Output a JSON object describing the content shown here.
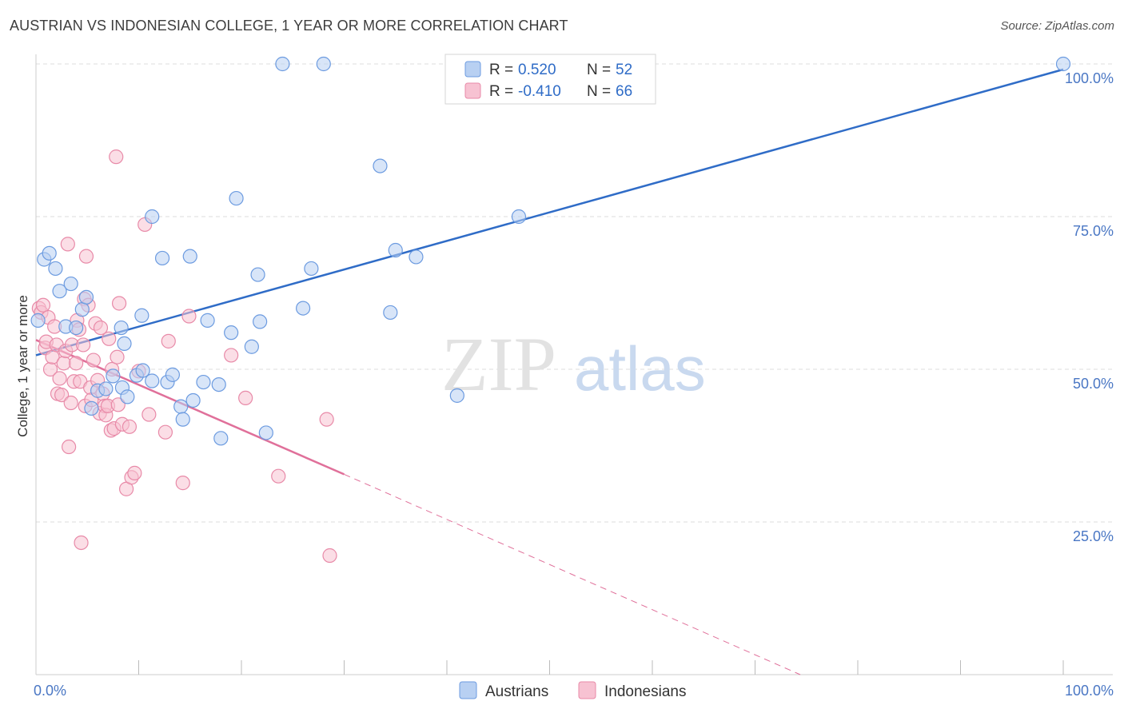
{
  "title": "AUSTRIAN VS INDONESIAN COLLEGE, 1 YEAR OR MORE CORRELATION CHART",
  "source": "Source: ZipAtlas.com",
  "watermark": {
    "zip": "ZIP",
    "atlas": "atlas"
  },
  "colors": {
    "austrian_fill": "#b8d0f2",
    "austrian_stroke": "#6c9be0",
    "austrian_line": "#2f6cc7",
    "indonesian_fill": "#f7c2d2",
    "indonesian_stroke": "#e88aa8",
    "indonesian_line": "#e0709a",
    "grid": "#dddddd",
    "tick_label": "#4a77c4"
  },
  "legend": {
    "rows": [
      {
        "r_label": "R =",
        "r_value": " 0.520",
        "n_label": "N =",
        "n_value": "52"
      },
      {
        "r_label": "R =",
        "r_value": "-0.410",
        "n_label": "N =",
        "n_value": "66"
      }
    ],
    "bottom": [
      "Austrians",
      "Indonesians"
    ]
  },
  "chart_data": {
    "type": "scatter",
    "title": "AUSTRIAN VS INDONESIAN COLLEGE, 1 YEAR OR MORE CORRELATION CHART",
    "xlabel": "",
    "ylabel": "College, 1 year or more",
    "xlim": [
      0,
      100
    ],
    "ylim": [
      0,
      100
    ],
    "x_ticks": [
      0,
      100
    ],
    "x_tick_labels": [
      "0.0%",
      "100.0%"
    ],
    "y_ticks": [
      25,
      50,
      75,
      100
    ],
    "y_tick_labels": [
      "25.0%",
      "50.0%",
      "75.0%",
      "100.0%"
    ],
    "grid": true,
    "legend_position": "top-center",
    "series": [
      {
        "name": "Austrians",
        "R": 0.52,
        "N": 52,
        "trend": {
          "x": [
            0,
            100
          ],
          "y": [
            52.3,
            99.1
          ]
        },
        "points": [
          {
            "x": 0.2,
            "y": 58.0
          },
          {
            "x": 0.8,
            "y": 68.0
          },
          {
            "x": 1.3,
            "y": 69.0
          },
          {
            "x": 1.9,
            "y": 66.5
          },
          {
            "x": 2.3,
            "y": 62.8
          },
          {
            "x": 2.9,
            "y": 57.0
          },
          {
            "x": 3.4,
            "y": 64.0
          },
          {
            "x": 3.9,
            "y": 56.8
          },
          {
            "x": 4.5,
            "y": 59.8
          },
          {
            "x": 4.9,
            "y": 61.8
          },
          {
            "x": 5.4,
            "y": 43.6
          },
          {
            "x": 6.0,
            "y": 46.5
          },
          {
            "x": 6.8,
            "y": 46.8
          },
          {
            "x": 7.5,
            "y": 48.9
          },
          {
            "x": 8.3,
            "y": 56.8
          },
          {
            "x": 8.6,
            "y": 54.2
          },
          {
            "x": 8.4,
            "y": 47.0
          },
          {
            "x": 8.9,
            "y": 45.5
          },
          {
            "x": 9.8,
            "y": 49.0
          },
          {
            "x": 10.3,
            "y": 58.8
          },
          {
            "x": 10.4,
            "y": 49.8
          },
          {
            "x": 11.3,
            "y": 48.1
          },
          {
            "x": 11.3,
            "y": 75.0
          },
          {
            "x": 12.3,
            "y": 68.2
          },
          {
            "x": 12.8,
            "y": 47.9
          },
          {
            "x": 13.3,
            "y": 49.1
          },
          {
            "x": 14.1,
            "y": 43.9
          },
          {
            "x": 14.3,
            "y": 41.8
          },
          {
            "x": 15.0,
            "y": 68.5
          },
          {
            "x": 15.3,
            "y": 44.9
          },
          {
            "x": 16.3,
            "y": 47.9
          },
          {
            "x": 16.7,
            "y": 58.0
          },
          {
            "x": 17.8,
            "y": 47.5
          },
          {
            "x": 18.0,
            "y": 38.7
          },
          {
            "x": 19.0,
            "y": 56.0
          },
          {
            "x": 19.5,
            "y": 78.0
          },
          {
            "x": 21.0,
            "y": 53.7
          },
          {
            "x": 21.6,
            "y": 65.5
          },
          {
            "x": 21.8,
            "y": 57.8
          },
          {
            "x": 22.4,
            "y": 39.6
          },
          {
            "x": 24.0,
            "y": 100.0
          },
          {
            "x": 26.0,
            "y": 60.0
          },
          {
            "x": 26.8,
            "y": 66.5
          },
          {
            "x": 28.0,
            "y": 100.0
          },
          {
            "x": 33.5,
            "y": 83.3
          },
          {
            "x": 34.5,
            "y": 59.3
          },
          {
            "x": 35.0,
            "y": 69.5
          },
          {
            "x": 37.0,
            "y": 68.4
          },
          {
            "x": 41.0,
            "y": 45.7
          },
          {
            "x": 47.0,
            "y": 75.0
          },
          {
            "x": 53.0,
            "y": 95.0
          },
          {
            "x": 100.0,
            "y": 100.0
          }
        ]
      },
      {
        "name": "Indonesians",
        "R": -0.41,
        "N": 66,
        "trend": {
          "x": [
            0,
            30
          ],
          "y": [
            54.8,
            32.8
          ]
        },
        "trend_dashed": {
          "x": [
            30,
            74.4
          ],
          "y": [
            32.8,
            0
          ]
        },
        "points": [
          {
            "x": 0.3,
            "y": 60.0
          },
          {
            "x": 0.5,
            "y": 59.3
          },
          {
            "x": 0.7,
            "y": 60.5
          },
          {
            "x": 0.9,
            "y": 53.5
          },
          {
            "x": 1.0,
            "y": 54.5
          },
          {
            "x": 1.2,
            "y": 58.5
          },
          {
            "x": 1.4,
            "y": 50.0
          },
          {
            "x": 1.6,
            "y": 52.0
          },
          {
            "x": 1.8,
            "y": 57.0
          },
          {
            "x": 2.0,
            "y": 54.0
          },
          {
            "x": 2.1,
            "y": 46.0
          },
          {
            "x": 2.3,
            "y": 48.5
          },
          {
            "x": 2.5,
            "y": 45.8
          },
          {
            "x": 2.7,
            "y": 51.0
          },
          {
            "x": 2.9,
            "y": 53.0
          },
          {
            "x": 3.1,
            "y": 70.5
          },
          {
            "x": 3.2,
            "y": 37.3
          },
          {
            "x": 3.4,
            "y": 44.5
          },
          {
            "x": 3.5,
            "y": 54.0
          },
          {
            "x": 3.7,
            "y": 48.0
          },
          {
            "x": 3.9,
            "y": 51.0
          },
          {
            "x": 4.0,
            "y": 58.0
          },
          {
            "x": 4.2,
            "y": 56.5
          },
          {
            "x": 4.3,
            "y": 48.0
          },
          {
            "x": 4.4,
            "y": 21.6
          },
          {
            "x": 4.6,
            "y": 54.0
          },
          {
            "x": 4.7,
            "y": 61.5
          },
          {
            "x": 4.8,
            "y": 44.0
          },
          {
            "x": 4.9,
            "y": 68.5
          },
          {
            "x": 5.1,
            "y": 60.5
          },
          {
            "x": 5.3,
            "y": 47.0
          },
          {
            "x": 5.4,
            "y": 45.0
          },
          {
            "x": 5.6,
            "y": 51.5
          },
          {
            "x": 5.8,
            "y": 57.5
          },
          {
            "x": 6.0,
            "y": 48.2
          },
          {
            "x": 6.2,
            "y": 42.8
          },
          {
            "x": 6.3,
            "y": 56.8
          },
          {
            "x": 6.5,
            "y": 46.0
          },
          {
            "x": 6.7,
            "y": 44.0
          },
          {
            "x": 6.8,
            "y": 42.5
          },
          {
            "x": 7.0,
            "y": 44.0
          },
          {
            "x": 7.1,
            "y": 55.0
          },
          {
            "x": 7.3,
            "y": 40.0
          },
          {
            "x": 7.4,
            "y": 50.0
          },
          {
            "x": 7.6,
            "y": 40.3
          },
          {
            "x": 7.8,
            "y": 84.8
          },
          {
            "x": 7.9,
            "y": 52.0
          },
          {
            "x": 8.0,
            "y": 44.2
          },
          {
            "x": 8.1,
            "y": 60.8
          },
          {
            "x": 8.4,
            "y": 41.0
          },
          {
            "x": 8.8,
            "y": 30.4
          },
          {
            "x": 9.1,
            "y": 40.6
          },
          {
            "x": 9.3,
            "y": 32.3
          },
          {
            "x": 10.0,
            "y": 49.7
          },
          {
            "x": 10.6,
            "y": 73.7
          },
          {
            "x": 11.0,
            "y": 42.6
          },
          {
            "x": 12.6,
            "y": 39.7
          },
          {
            "x": 12.9,
            "y": 54.6
          },
          {
            "x": 14.3,
            "y": 31.4
          },
          {
            "x": 14.9,
            "y": 58.7
          },
          {
            "x": 19.0,
            "y": 52.3
          },
          {
            "x": 20.4,
            "y": 45.3
          },
          {
            "x": 23.6,
            "y": 32.5
          },
          {
            "x": 28.3,
            "y": 41.8
          },
          {
            "x": 28.6,
            "y": 19.5
          },
          {
            "x": 9.6,
            "y": 33.0
          }
        ]
      }
    ]
  }
}
